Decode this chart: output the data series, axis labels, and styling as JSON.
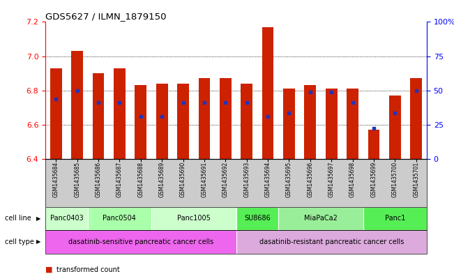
{
  "title": "GDS5627 / ILMN_1879150",
  "samples": [
    "GSM1435684",
    "GSM1435685",
    "GSM1435686",
    "GSM1435687",
    "GSM1435688",
    "GSM1435689",
    "GSM1435690",
    "GSM1435691",
    "GSM1435692",
    "GSM1435693",
    "GSM1435694",
    "GSM1435695",
    "GSM1435696",
    "GSM1435697",
    "GSM1435698",
    "GSM1435699",
    "GSM1435700",
    "GSM1435701"
  ],
  "bar_heights": [
    6.93,
    7.03,
    6.9,
    6.93,
    6.83,
    6.84,
    6.84,
    6.87,
    6.87,
    6.84,
    7.17,
    6.81,
    6.83,
    6.81,
    6.81,
    6.57,
    6.77,
    6.87
  ],
  "blue_positions": [
    6.75,
    6.8,
    6.73,
    6.73,
    6.65,
    6.65,
    6.73,
    6.73,
    6.73,
    6.73,
    6.65,
    6.67,
    6.79,
    6.79,
    6.73,
    6.58,
    6.67,
    6.8
  ],
  "ylim": [
    6.4,
    7.2
  ],
  "yticks": [
    6.4,
    6.6,
    6.8,
    7.0,
    7.2
  ],
  "right_yticks": [
    0,
    25,
    50,
    75,
    100
  ],
  "right_ytick_labels": [
    "0",
    "25",
    "50",
    "75",
    "100%"
  ],
  "bar_color": "#cc2200",
  "blue_color": "#2233bb",
  "background_color": "#ffffff",
  "bar_width": 0.55,
  "cell_line_groups": [
    {
      "label": "Panc0403",
      "start": 0,
      "end": 1,
      "color": "#ccffcc"
    },
    {
      "label": "Panc0504",
      "start": 2,
      "end": 4,
      "color": "#aaffaa"
    },
    {
      "label": "Panc1005",
      "start": 5,
      "end": 8,
      "color": "#ccffcc"
    },
    {
      "label": "SU8686",
      "start": 9,
      "end": 10,
      "color": "#55ee55"
    },
    {
      "label": "MiaPaCa2",
      "start": 11,
      "end": 14,
      "color": "#99ee99"
    },
    {
      "label": "Panc1",
      "start": 15,
      "end": 17,
      "color": "#55ee55"
    }
  ],
  "cell_type_groups": [
    {
      "label": "dasatinib-sensitive pancreatic cancer cells",
      "start": 0,
      "end": 8,
      "color": "#ee66ee"
    },
    {
      "label": "dasatinib-resistant pancreatic cancer cells",
      "start": 9,
      "end": 17,
      "color": "#ddaadd"
    }
  ]
}
